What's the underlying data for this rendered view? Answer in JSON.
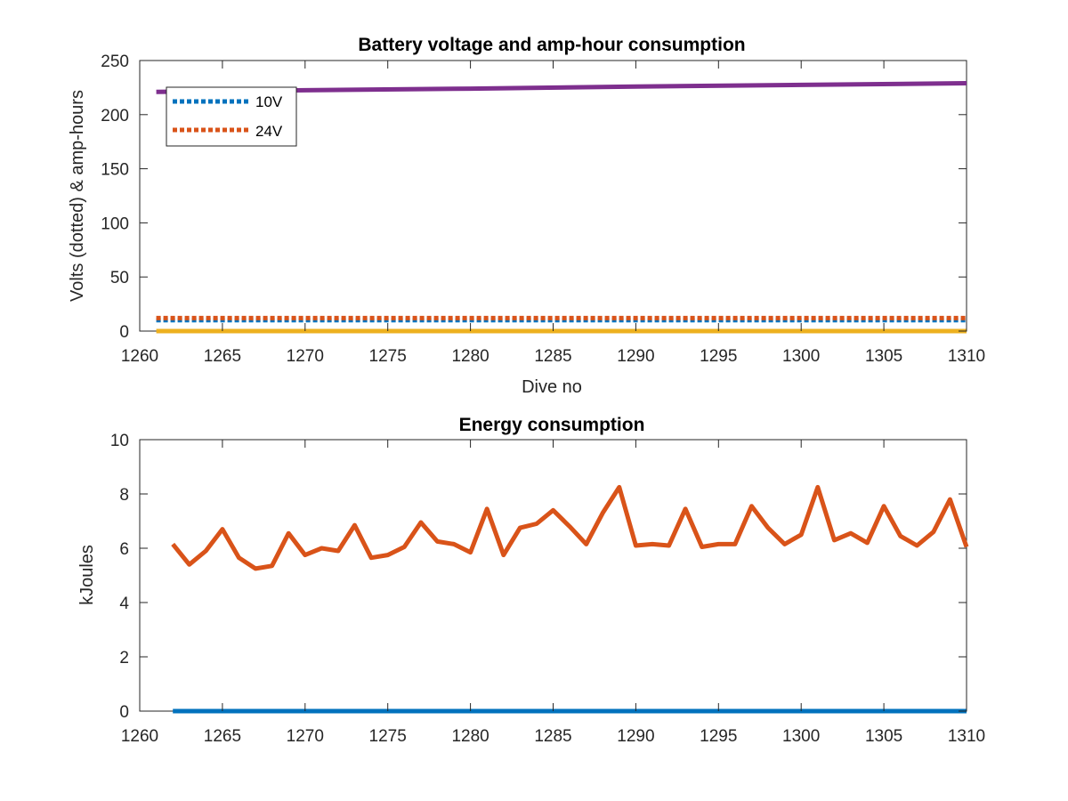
{
  "colors": {
    "purple": "#7E2F8E",
    "blue": "#0072BD",
    "orange": "#D95319",
    "yellow": "#EDB120",
    "axis": "#262626"
  },
  "chart_data": [
    {
      "type": "line",
      "title": "Battery voltage and amp-hour consumption",
      "xlabel": "Dive no",
      "ylabel": "Volts (dotted) & amp-hours",
      "xlim": [
        1260,
        1310
      ],
      "ylim": [
        0,
        250
      ],
      "xticks": [
        1260,
        1265,
        1270,
        1275,
        1280,
        1285,
        1290,
        1295,
        1300,
        1305,
        1310
      ],
      "yticks": [
        0,
        50,
        100,
        150,
        200,
        250
      ],
      "grid": false,
      "legend_position": "top-left",
      "series": [
        {
          "name": "10V",
          "style": "dotted",
          "color": "#0072BD",
          "x": [
            1261,
            1310
          ],
          "y": [
            10,
            10
          ]
        },
        {
          "name": "24V",
          "style": "dotted",
          "color": "#D95319",
          "x": [
            1261,
            1310
          ],
          "y": [
            12,
            12
          ]
        },
        {
          "style": "solid",
          "color": "#7E2F8E",
          "x": [
            1261,
            1270,
            1280,
            1290,
            1300,
            1310
          ],
          "y": [
            221,
            222.5,
            224,
            226,
            227.5,
            229
          ]
        },
        {
          "style": "solid",
          "color": "#EDB120",
          "x": [
            1261,
            1310
          ],
          "y": [
            0,
            0
          ]
        }
      ]
    },
    {
      "type": "line",
      "title": "Energy consumption",
      "xlabel": "",
      "ylabel": "kJoules",
      "xlim": [
        1260,
        1310
      ],
      "ylim": [
        0,
        10
      ],
      "xticks": [
        1260,
        1265,
        1270,
        1275,
        1280,
        1285,
        1290,
        1295,
        1300,
        1305,
        1310
      ],
      "yticks": [
        0,
        2,
        4,
        6,
        8,
        10
      ],
      "grid": false,
      "series": [
        {
          "style": "solid",
          "color": "#0072BD",
          "x": [
            1262,
            1310
          ],
          "y": [
            0,
            0
          ]
        },
        {
          "style": "solid",
          "color": "#D95319",
          "x": [
            1262,
            1263,
            1264,
            1265,
            1266,
            1267,
            1268,
            1269,
            1270,
            1271,
            1272,
            1273,
            1274,
            1275,
            1276,
            1277,
            1278,
            1279,
            1280,
            1281,
            1282,
            1283,
            1284,
            1285,
            1286,
            1287,
            1288,
            1289,
            1290,
            1291,
            1292,
            1293,
            1294,
            1295,
            1296,
            1297,
            1298,
            1299,
            1300,
            1301,
            1302,
            1303,
            1304,
            1305,
            1306,
            1307,
            1308,
            1309,
            1310
          ],
          "y": [
            6.15,
            5.4,
            5.9,
            6.7,
            5.65,
            5.25,
            5.35,
            6.55,
            5.75,
            6.0,
            5.9,
            6.85,
            5.65,
            5.75,
            6.05,
            6.95,
            6.25,
            6.15,
            5.85,
            7.45,
            5.75,
            6.75,
            6.9,
            7.4,
            6.8,
            6.15,
            7.3,
            8.25,
            6.1,
            6.15,
            6.1,
            7.45,
            6.05,
            6.15,
            6.15,
            7.55,
            6.75,
            6.15,
            6.5,
            8.25,
            6.3,
            6.55,
            6.2,
            7.55,
            6.45,
            6.1,
            6.6,
            7.8,
            6.05
          ]
        }
      ]
    }
  ]
}
